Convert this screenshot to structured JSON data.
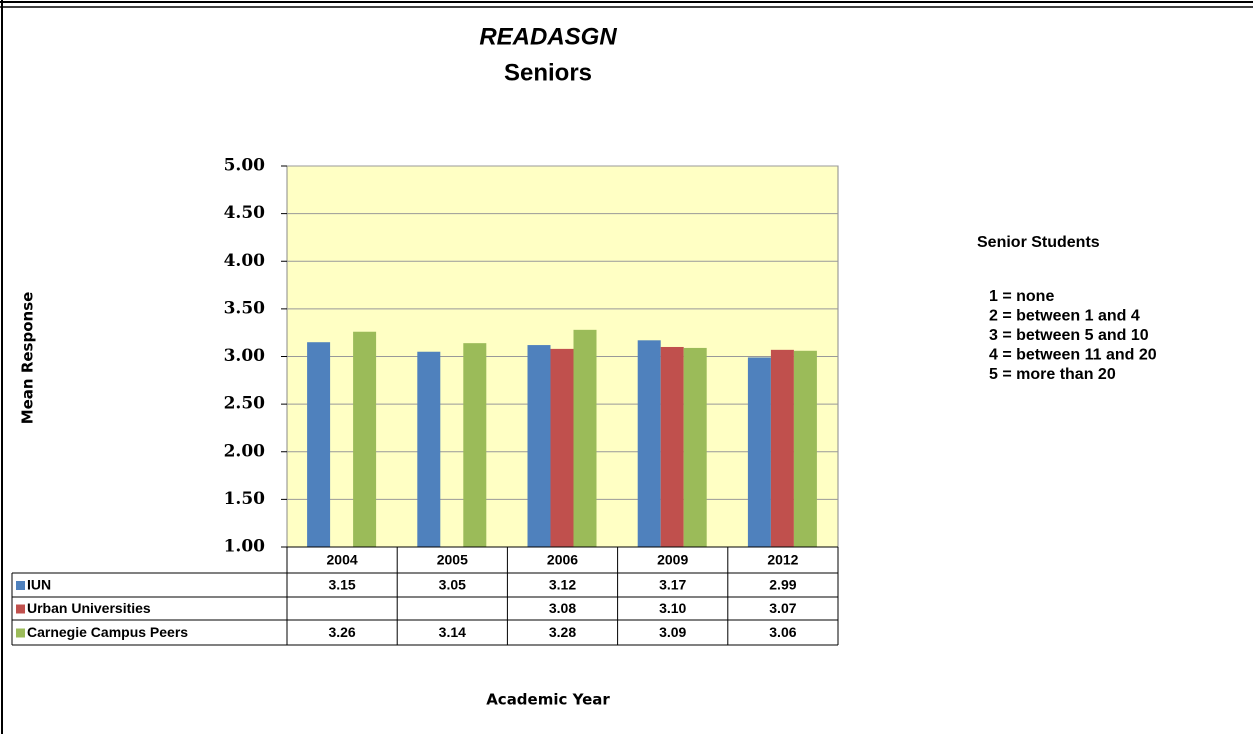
{
  "chart_data": {
    "type": "bar",
    "title": "READASGN",
    "subtitle": "Seniors",
    "y_label": "Mean Response",
    "x_label": "Academic Year",
    "categories": [
      "2004",
      "2005",
      "2006",
      "2009",
      "2012"
    ],
    "series": [
      {
        "name": "IUN",
        "color": "#4f81bd",
        "values": [
          3.15,
          3.05,
          3.12,
          3.17,
          2.99
        ],
        "value_labels": [
          "3.15",
          "3.05",
          "3.12",
          "3.17",
          "2.99"
        ]
      },
      {
        "name": "Urban Universities",
        "color": "#c0504d",
        "values": [
          null,
          null,
          3.08,
          3.1,
          3.07
        ],
        "value_labels": [
          null,
          null,
          "3.08",
          "3.10",
          "3.07"
        ]
      },
      {
        "name": "Carnegie Campus Peers",
        "color": "#9bbb59",
        "values": [
          3.26,
          3.14,
          3.28,
          3.09,
          3.06
        ],
        "value_labels": [
          "3.26",
          "3.14",
          "3.28",
          "3.09",
          "3.06"
        ]
      }
    ],
    "ylim": [
      1,
      5
    ],
    "yticks": [
      {
        "value": 1,
        "label": "1.00"
      },
      {
        "value": 1.5,
        "label": "1.50"
      },
      {
        "value": 2,
        "label": "2.00"
      },
      {
        "value": 2.5,
        "label": "2.50"
      },
      {
        "value": 3,
        "label": "3.00"
      },
      {
        "value": 3.5,
        "label": "3.50"
      },
      {
        "value": 4,
        "label": "4.00"
      },
      {
        "value": 4.5,
        "label": "4.50"
      },
      {
        "value": 5,
        "label": "5.00"
      }
    ],
    "grid": true,
    "plot_background": "#ffffc4"
  },
  "notes": {
    "title": "Senior Students",
    "lines": [
      "1 = none",
      "2 = between 1 and 4",
      "3 = between 5 and 10",
      "4 = between 11 and 20",
      "5 = more than 20"
    ]
  }
}
